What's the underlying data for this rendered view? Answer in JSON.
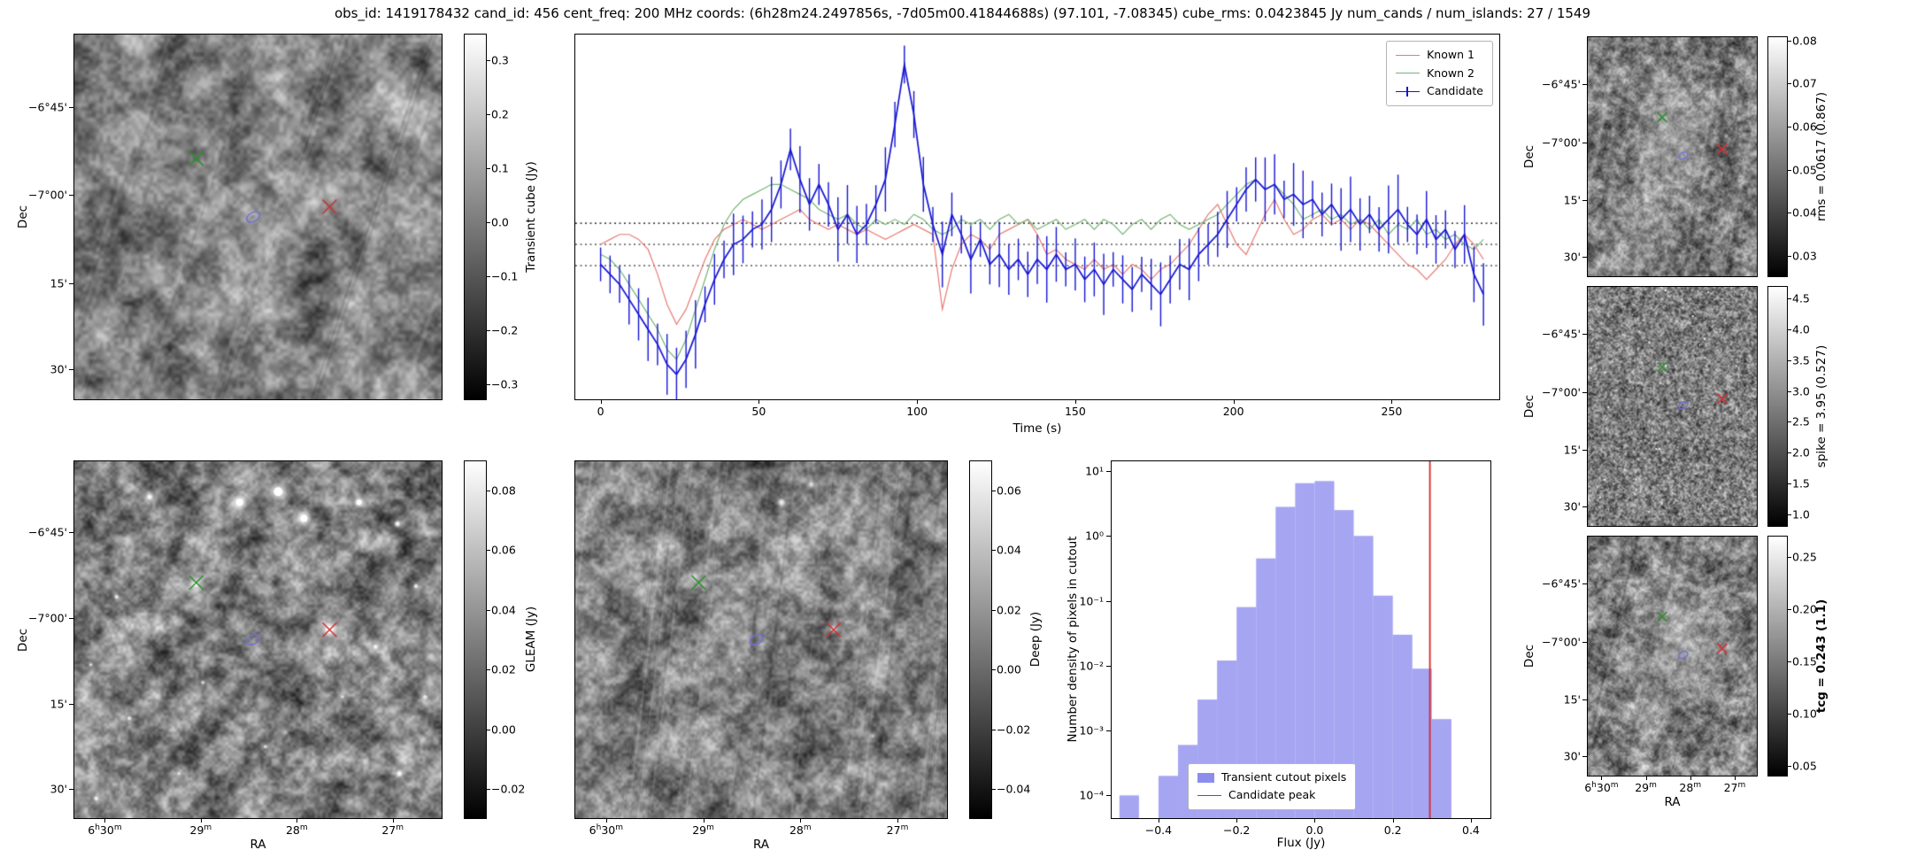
{
  "title": "obs_id: 1419178432 cand_id: 456 cent_freq: 200 MHz coords: (6h28m24.2497856s, -7d05m00.41844688s) (97.101, -7.08345) cube_rms: 0.0423845 Jy num_cands / num_islands: 27 / 1549",
  "axes": {
    "dec_label": "Dec",
    "ra_label": "RA",
    "dec_ticks": [
      "−6°45'",
      "−7°00'",
      "15'",
      "30'"
    ],
    "ra_ticks": [
      "6h30m",
      "29m",
      "28m",
      "27m"
    ]
  },
  "chart_data": [
    {
      "id": "lightcurve",
      "type": "line",
      "xlabel": "Time (s)",
      "ylabel": "",
      "xlim": [
        -8,
        284
      ],
      "ylim": [
        -0.31,
        0.42
      ],
      "hlines": [
        0.0424,
        0.0,
        -0.0424
      ],
      "xticks": [
        0,
        50,
        100,
        150,
        200,
        250
      ],
      "xtick_labels": [
        "0",
        "50",
        "100",
        "150",
        "200",
        "250"
      ],
      "legend_position": "top-right",
      "x": [
        0,
        3,
        6,
        9,
        12,
        15,
        18,
        21,
        24,
        27,
        30,
        33,
        36,
        39,
        42,
        45,
        48,
        51,
        54,
        57,
        60,
        63,
        66,
        69,
        72,
        75,
        78,
        81,
        84,
        87,
        90,
        93,
        96,
        99,
        102,
        105,
        108,
        111,
        114,
        117,
        120,
        123,
        126,
        129,
        132,
        135,
        138,
        141,
        144,
        147,
        150,
        153,
        156,
        159,
        162,
        165,
        168,
        171,
        174,
        177,
        180,
        183,
        186,
        189,
        192,
        195,
        198,
        201,
        204,
        207,
        210,
        213,
        216,
        219,
        222,
        225,
        228,
        231,
        234,
        237,
        240,
        243,
        246,
        249,
        252,
        255,
        258,
        261,
        264,
        267,
        270,
        273,
        276,
        279
      ],
      "series": [
        {
          "name": "Known 1",
          "color": "#e87a72",
          "values": [
            0.0,
            0.01,
            0.02,
            0.02,
            0.01,
            -0.01,
            -0.06,
            -0.12,
            -0.16,
            -0.13,
            -0.08,
            -0.03,
            0.01,
            0.03,
            0.04,
            0.05,
            0.04,
            0.03,
            0.04,
            0.05,
            0.06,
            0.07,
            0.05,
            0.04,
            0.03,
            0.04,
            0.03,
            0.02,
            0.03,
            0.02,
            0.01,
            0.02,
            0.03,
            0.04,
            0.03,
            0.02,
            -0.13,
            -0.05,
            0.0,
            0.02,
            0.01,
            -0.01,
            0.02,
            0.03,
            0.04,
            0.05,
            0.02,
            -0.02,
            -0.01,
            -0.03,
            -0.04,
            -0.05,
            -0.03,
            -0.05,
            -0.04,
            -0.06,
            -0.04,
            -0.05,
            -0.07,
            -0.05,
            -0.04,
            -0.02,
            0.0,
            0.03,
            0.06,
            0.08,
            0.04,
            0.0,
            -0.02,
            0.02,
            0.06,
            0.09,
            0.05,
            0.02,
            0.03,
            0.05,
            0.06,
            0.04,
            0.05,
            0.03,
            0.05,
            0.04,
            0.02,
            0.0,
            -0.02,
            -0.04,
            -0.05,
            -0.07,
            -0.05,
            -0.03,
            0.0,
            0.02,
            0.0,
            -0.03
          ]
        },
        {
          "name": "Known 2",
          "color": "#74b474",
          "values": [
            -0.02,
            -0.03,
            -0.05,
            -0.08,
            -0.11,
            -0.14,
            -0.17,
            -0.21,
            -0.23,
            -0.19,
            -0.13,
            -0.07,
            -0.01,
            0.04,
            0.07,
            0.09,
            0.1,
            0.11,
            0.12,
            0.12,
            0.11,
            0.1,
            0.09,
            0.07,
            0.06,
            0.05,
            0.06,
            0.04,
            0.03,
            0.05,
            0.04,
            0.05,
            0.04,
            0.06,
            0.05,
            0.03,
            0.02,
            0.03,
            0.05,
            0.04,
            0.05,
            0.03,
            0.05,
            0.06,
            0.04,
            0.05,
            0.03,
            0.04,
            0.05,
            0.03,
            0.04,
            0.05,
            0.03,
            0.05,
            0.04,
            0.02,
            0.04,
            0.05,
            0.03,
            0.05,
            0.06,
            0.04,
            0.03,
            0.04,
            0.05,
            0.06,
            0.08,
            0.1,
            0.12,
            0.13,
            0.11,
            0.12,
            0.1,
            0.08,
            0.05,
            0.06,
            0.07,
            0.05,
            0.06,
            0.04,
            0.05,
            0.03,
            0.05,
            0.02,
            0.04,
            0.03,
            0.05,
            0.02,
            0.03,
            0.01,
            0.02,
            0.0,
            -0.01,
            0.01
          ]
        },
        {
          "name": "Candidate",
          "color": "#1414d2",
          "yerr": 0.045,
          "values": [
            -0.04,
            -0.06,
            -0.08,
            -0.11,
            -0.14,
            -0.17,
            -0.2,
            -0.24,
            -0.26,
            -0.23,
            -0.18,
            -0.12,
            -0.07,
            -0.03,
            0.0,
            0.01,
            0.03,
            0.04,
            0.07,
            0.12,
            0.19,
            0.13,
            0.08,
            0.12,
            0.08,
            0.03,
            0.06,
            0.02,
            0.04,
            0.08,
            0.13,
            0.24,
            0.36,
            0.26,
            0.12,
            0.04,
            -0.02,
            0.06,
            0.02,
            -0.03,
            0.01,
            -0.04,
            -0.02,
            -0.05,
            -0.03,
            -0.06,
            -0.03,
            -0.05,
            -0.02,
            -0.05,
            -0.04,
            -0.07,
            -0.05,
            -0.08,
            -0.05,
            -0.07,
            -0.09,
            -0.06,
            -0.08,
            -0.1,
            -0.07,
            -0.04,
            -0.05,
            -0.02,
            0.0,
            0.02,
            0.05,
            0.08,
            0.11,
            0.13,
            0.11,
            0.12,
            0.09,
            0.1,
            0.08,
            0.09,
            0.06,
            0.08,
            0.05,
            0.07,
            0.04,
            0.06,
            0.03,
            0.05,
            0.07,
            0.04,
            0.02,
            0.05,
            0.01,
            0.03,
            -0.01,
            0.02,
            -0.06,
            -0.1
          ]
        }
      ]
    },
    {
      "id": "histogram",
      "type": "bar",
      "xlabel": "Flux (Jy)",
      "ylabel": "Number density of pixels in cutout",
      "yscale": "log",
      "xlim": [
        -0.52,
        0.45
      ],
      "ylim_log10": [
        -4.35,
        1.15
      ],
      "bin_edges": [
        -0.5,
        -0.45,
        -0.4,
        -0.35,
        -0.3,
        -0.25,
        -0.2,
        -0.15,
        -0.1,
        -0.05,
        0.0,
        0.05,
        0.1,
        0.15,
        0.2,
        0.25,
        0.3,
        0.35
      ],
      "densities": [
        0.0001,
        0,
        0.0002,
        0.0006,
        0.003,
        0.012,
        0.08,
        0.45,
        2.8,
        6.5,
        7.0,
        2.5,
        1.0,
        0.12,
        0.03,
        0.009,
        0.0015
      ],
      "candidate_peak": 0.295,
      "bar_color": "#8c8cee",
      "xticks": [
        -0.4,
        -0.2,
        0.0,
        0.2,
        0.4
      ],
      "xtick_labels": [
        "−0.4",
        "−0.2",
        "0.0",
        "0.2",
        "0.4"
      ],
      "ytick_exp": [
        1,
        0,
        -1,
        -2,
        -3,
        -4
      ],
      "ytick_labels": [
        "10¹",
        "10⁰",
        "10⁻¹",
        "10⁻²",
        "10⁻³",
        "10⁻⁴"
      ],
      "legend": [
        {
          "label": "Transient cutout pixels",
          "color": "#8c8cee"
        },
        {
          "label": "Candidate peak",
          "color": "#d62728"
        }
      ]
    },
    {
      "id": "transient_cube",
      "type": "heatmap",
      "colorbar_label": "Transient cube (Jy)",
      "colorbar_tick_labels": [
        "0.3",
        "0.2",
        "0.1",
        "0.0",
        "−0.1",
        "−0.2",
        "−0.3"
      ],
      "colorbar_tick_vals": [
        0.3,
        0.2,
        0.1,
        0.0,
        -0.1,
        -0.2,
        -0.3
      ],
      "vmin": -0.33,
      "vmax": 0.35,
      "markers": {
        "green_x": [
          0.332,
          0.34
        ],
        "blue_ellipse": [
          0.487,
          0.5
        ],
        "red_x": [
          0.695,
          0.472
        ]
      }
    },
    {
      "id": "gleam",
      "type": "heatmap",
      "colorbar_label": "GLEAM (Jy)",
      "colorbar_tick_labels": [
        "0.08",
        "0.06",
        "0.04",
        "0.02",
        "0.00",
        "−0.02"
      ],
      "colorbar_tick_vals": [
        0.08,
        0.06,
        0.04,
        0.02,
        0.0,
        -0.02
      ],
      "vmin": -0.03,
      "vmax": 0.09,
      "markers": {
        "green_x": [
          0.332,
          0.34
        ],
        "blue_ellipse": [
          0.487,
          0.5
        ],
        "red_x": [
          0.695,
          0.472
        ]
      }
    },
    {
      "id": "deep",
      "type": "heatmap",
      "colorbar_label": "Deep (Jy)",
      "colorbar_tick_labels": [
        "0.06",
        "0.04",
        "0.02",
        "0.00",
        "−0.02",
        "−0.04"
      ],
      "colorbar_tick_vals": [
        0.06,
        0.04,
        0.02,
        0.0,
        -0.02,
        -0.04
      ],
      "vmin": -0.05,
      "vmax": 0.07,
      "markers": {
        "green_x": [
          0.332,
          0.34
        ],
        "blue_ellipse": [
          0.487,
          0.5
        ],
        "red_x": [
          0.695,
          0.472
        ]
      }
    },
    {
      "id": "rms",
      "type": "heatmap",
      "colorbar_label": "rms = 0.0617 (0.867)",
      "colorbar_tick_labels": [
        "0.08",
        "0.07",
        "0.06",
        "0.05",
        "0.04",
        "0.03"
      ],
      "colorbar_tick_vals": [
        0.08,
        0.07,
        0.06,
        0.05,
        0.04,
        0.03
      ],
      "vmin": 0.025,
      "vmax": 0.081,
      "markers": {
        "green_x": [
          0.44,
          0.335
        ],
        "blue_ellipse": [
          0.565,
          0.495
        ],
        "red_x": [
          0.795,
          0.468
        ]
      }
    },
    {
      "id": "spike",
      "type": "heatmap",
      "colorbar_label": "spike = 3.95 (0.527)",
      "colorbar_tick_labels": [
        "4.5",
        "4.0",
        "3.5",
        "3.0",
        "2.5",
        "2.0",
        "1.5",
        "1.0"
      ],
      "colorbar_tick_vals": [
        4.5,
        4.0,
        3.5,
        3.0,
        2.5,
        2.0,
        1.5,
        1.0
      ],
      "vmin": 0.8,
      "vmax": 4.7,
      "markers": {
        "green_x": [
          0.44,
          0.335
        ],
        "blue_ellipse": [
          0.565,
          0.495
        ],
        "red_x": [
          0.795,
          0.468
        ]
      }
    },
    {
      "id": "tcg",
      "type": "heatmap",
      "colorbar_label": "tcg = 0.243 (1.1)",
      "bold": true,
      "colorbar_tick_labels": [
        "0.25",
        "0.20",
        "0.15",
        "0.10",
        "0.05"
      ],
      "colorbar_tick_vals": [
        0.25,
        0.2,
        0.15,
        0.1,
        0.05
      ],
      "vmin": 0.04,
      "vmax": 0.27,
      "markers": {
        "green_x": [
          0.44,
          0.335
        ],
        "blue_ellipse": [
          0.565,
          0.495
        ],
        "red_x": [
          0.795,
          0.468
        ]
      }
    }
  ]
}
